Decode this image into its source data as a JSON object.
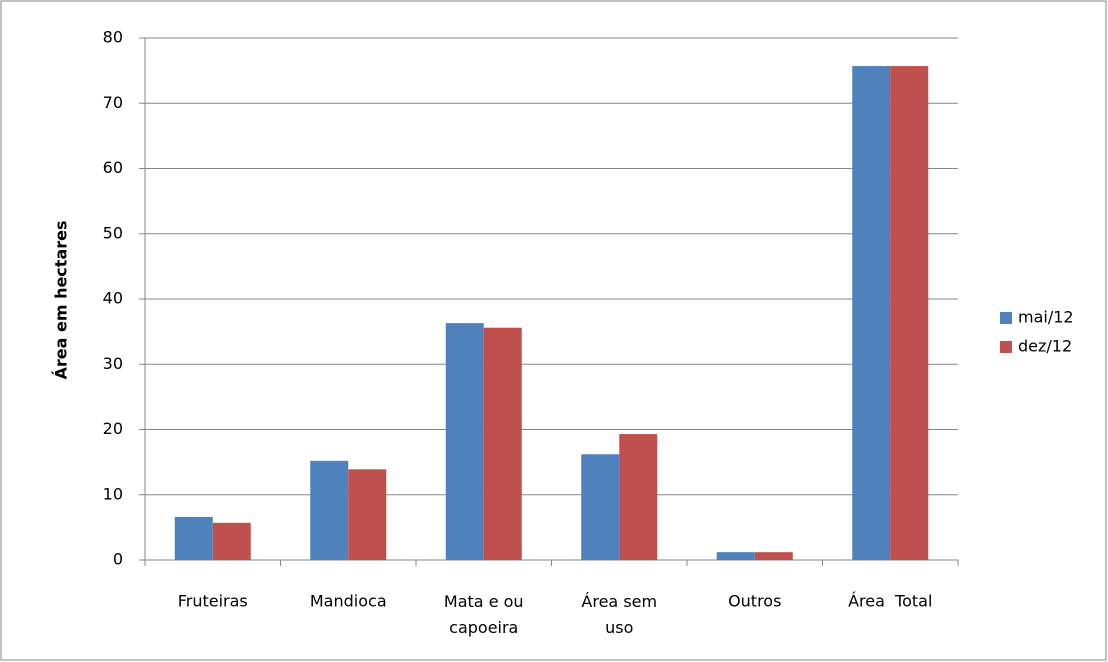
{
  "chart_data": {
    "type": "bar",
    "y_label": "Área em hectares",
    "categories": [
      "Fruteiras",
      "Mandioca",
      "Mata e ou capoeira",
      "Área sem uso",
      "Outros",
      "Área  Total"
    ],
    "series": [
      {
        "name": "mai/12",
        "color": "#4f81bd",
        "values": [
          6.6,
          15.2,
          36.3,
          16.2,
          1.2,
          75.7
        ]
      },
      {
        "name": "dez/12",
        "color": "#c0504d",
        "values": [
          5.7,
          13.9,
          35.6,
          19.3,
          1.2,
          75.7
        ]
      }
    ],
    "ylim": [
      0,
      80
    ],
    "yticks": [
      0,
      10,
      20,
      30,
      40,
      50,
      60,
      70,
      80
    ],
    "grid": true,
    "legend": "right"
  }
}
